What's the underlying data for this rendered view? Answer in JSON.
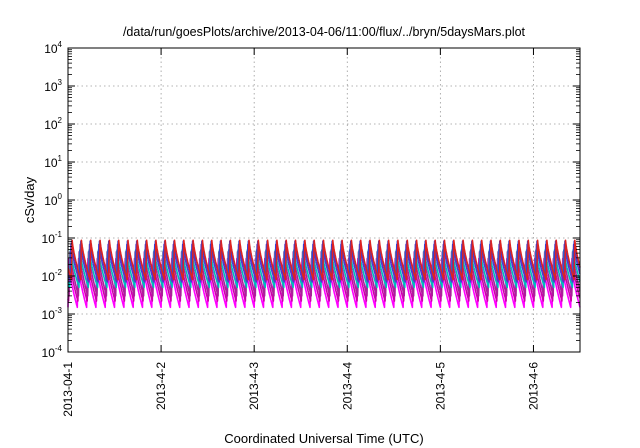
{
  "chart_data": {
    "type": "line",
    "title": "/data/run/goesPlots/archive/2013-04-06/11:00/flux/../bryn/5daysMars.plot",
    "xlabel": "Coordinated Universal Time (UTC)",
    "ylabel": "cSv/day",
    "y_scale": "log",
    "ylim": [
      0.0001,
      10000
    ],
    "y_ticks": [
      {
        "base": "10",
        "exp": "4"
      },
      {
        "base": "10",
        "exp": "3"
      },
      {
        "base": "10",
        "exp": "2"
      },
      {
        "base": "10",
        "exp": "1"
      },
      {
        "base": "10",
        "exp": "0"
      },
      {
        "base": "10",
        "exp": "-1"
      },
      {
        "base": "10",
        "exp": "-2"
      },
      {
        "base": "10",
        "exp": "-3"
      },
      {
        "base": "10",
        "exp": "-4"
      }
    ],
    "x_ticks": [
      "2013-04-1",
      "2013-4-2",
      "2013-4-3",
      "2013-4-4",
      "2013-4-5",
      "2013-4-6"
    ],
    "xlim": [
      "2013-04-01 00:00",
      "2013-04-06 12:00"
    ],
    "grid": true,
    "series": [
      {
        "color": "#ff00ff",
        "peak": 0.02,
        "trough": 0.0015
      },
      {
        "color": "#cc00aa",
        "peak": 0.03,
        "trough": 0.0022
      },
      {
        "color": "#aa2299",
        "peak": 0.045,
        "trough": 0.003
      },
      {
        "color": "#00bbbb",
        "peak": 0.05,
        "trough": 0.005
      },
      {
        "color": "#5533cc",
        "peak": 0.07,
        "trough": 0.007
      },
      {
        "color": "#2244dd",
        "peak": 0.085,
        "trough": 0.009
      },
      {
        "color": "#dd2222",
        "peak": 0.09,
        "trough": 0.008
      }
    ],
    "cycles_per_day": 10
  }
}
